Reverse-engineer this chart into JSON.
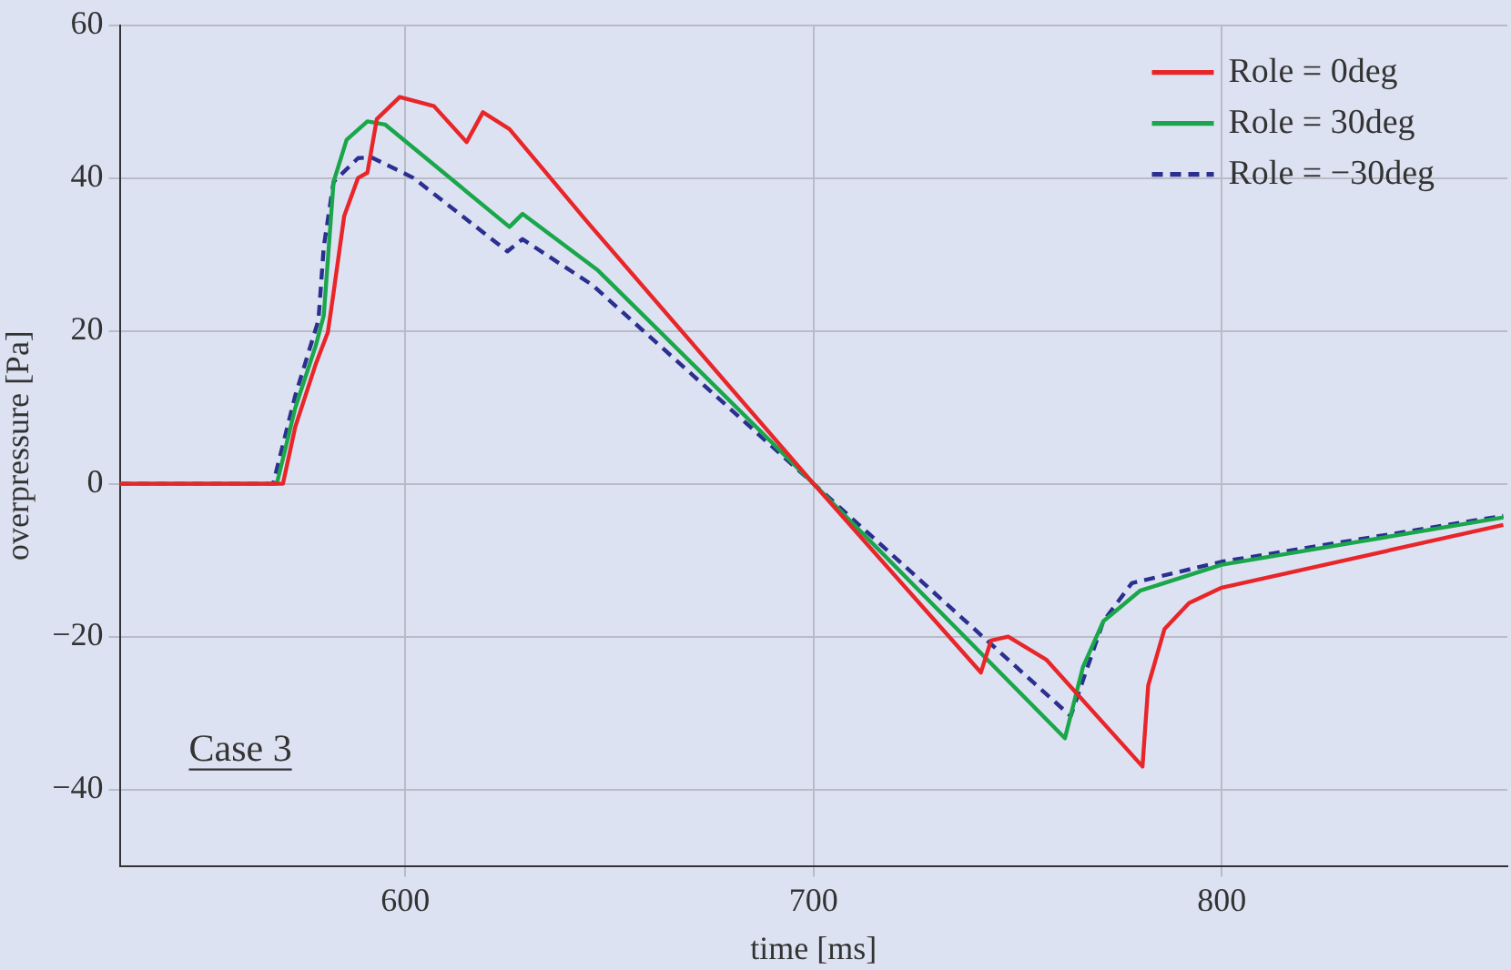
{
  "chart_data": {
    "type": "line",
    "xlabel": "time [ms]",
    "ylabel": "overpressure [Pa]",
    "xlim": [
      530,
      870
    ],
    "xticks": [
      600,
      700,
      800
    ],
    "ylim": [
      -50,
      60
    ],
    "yticks": [
      {
        "value": -40,
        "label": "−40"
      },
      {
        "value": -20,
        "label": "−20"
      },
      0,
      20,
      40,
      60
    ],
    "grid": true,
    "legend": "top right",
    "marker": "none",
    "annotations": [
      "Case 3"
    ],
    "series": [
      {
        "name": "Role = 0deg",
        "color": "#e8262a",
        "line_style": "solid",
        "x": [
          530,
          570,
          573,
          578,
          581,
          582.4,
          585,
          588.4,
          590.7,
          593,
          598.6,
          607,
          615,
          619,
          625.5,
          644,
          700,
          741,
          743.5,
          747.7,
          757,
          780.6,
          782,
          786,
          792,
          800,
          869
        ],
        "values": [
          0,
          0,
          7.4,
          15.6,
          19.8,
          25,
          35,
          40,
          40.7,
          47.7,
          50.6,
          49.4,
          44.7,
          48.6,
          46.4,
          34.6,
          0,
          -24.7,
          -20.5,
          -20,
          -23,
          -37,
          -26.4,
          -19,
          -15.6,
          -13.6,
          -5.4
        ]
      },
      {
        "name": "Role = 30deg",
        "color": "#1aa64a",
        "line_style": "solid",
        "x": [
          530,
          568.5,
          573,
          578,
          580,
          582.4,
          585.6,
          590.7,
          595,
          625.5,
          628.7,
          647,
          700,
          761.6,
          766,
          771,
          780,
          800,
          869
        ],
        "values": [
          0,
          0,
          9.9,
          18,
          22,
          39.5,
          45,
          47.4,
          47,
          33.6,
          35.3,
          28,
          0,
          -33.3,
          -24,
          -18,
          -14,
          -10.6,
          -4.4
        ]
      },
      {
        "name": "Role = −30deg",
        "color": "#2b2f8f",
        "line_style": "dashed",
        "x": [
          530,
          567.6,
          573,
          578.7,
          580,
          582.4,
          588.4,
          591.7,
          602,
          625,
          628.7,
          645.8,
          700,
          763,
          771,
          778,
          800,
          869
        ],
        "values": [
          0,
          0,
          11.5,
          21.4,
          31,
          39.5,
          42.6,
          42.7,
          40,
          30.4,
          32,
          26,
          0,
          -30.4,
          -18,
          -13,
          -10.2,
          -4.2
        ]
      }
    ]
  }
}
